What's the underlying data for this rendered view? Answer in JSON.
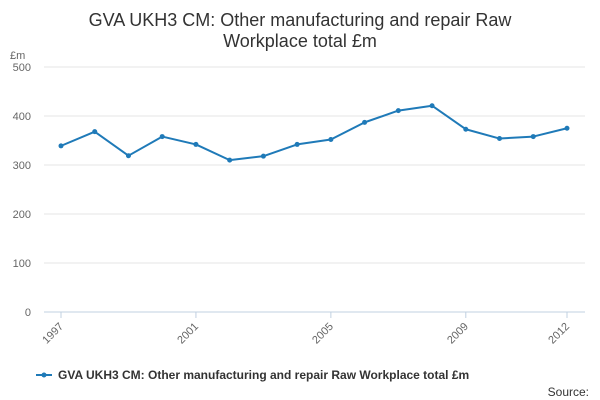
{
  "chart_data": {
    "type": "line",
    "title_lines": [
      "GVA UKH3 CM: Other manufacturing and repair Raw",
      "Workplace total £m"
    ],
    "y_unit_label": "£m",
    "ylim": [
      0,
      500
    ],
    "y_ticks": [
      "0",
      "100",
      "200",
      "300",
      "400",
      "500"
    ],
    "x": [
      1997,
      1998,
      1999,
      2000,
      2001,
      2002,
      2003,
      2004,
      2005,
      2006,
      2007,
      2008,
      2009,
      2010,
      2011,
      2012
    ],
    "x_tick_labels": [
      "1997",
      "2001",
      "2005",
      "2009",
      "2012"
    ],
    "grid": true,
    "legend_position": "bottom",
    "series": [
      {
        "name": "GVA UKH3 CM: Other manufacturing and repair Raw Workplace total £m",
        "color": "#1f7ab8",
        "values": [
          339,
          368,
          319,
          358,
          342,
          310,
          318,
          342,
          352,
          387,
          411,
          421,
          373,
          354,
          358,
          375
        ]
      }
    ]
  },
  "footer": {
    "source": "Source:"
  }
}
